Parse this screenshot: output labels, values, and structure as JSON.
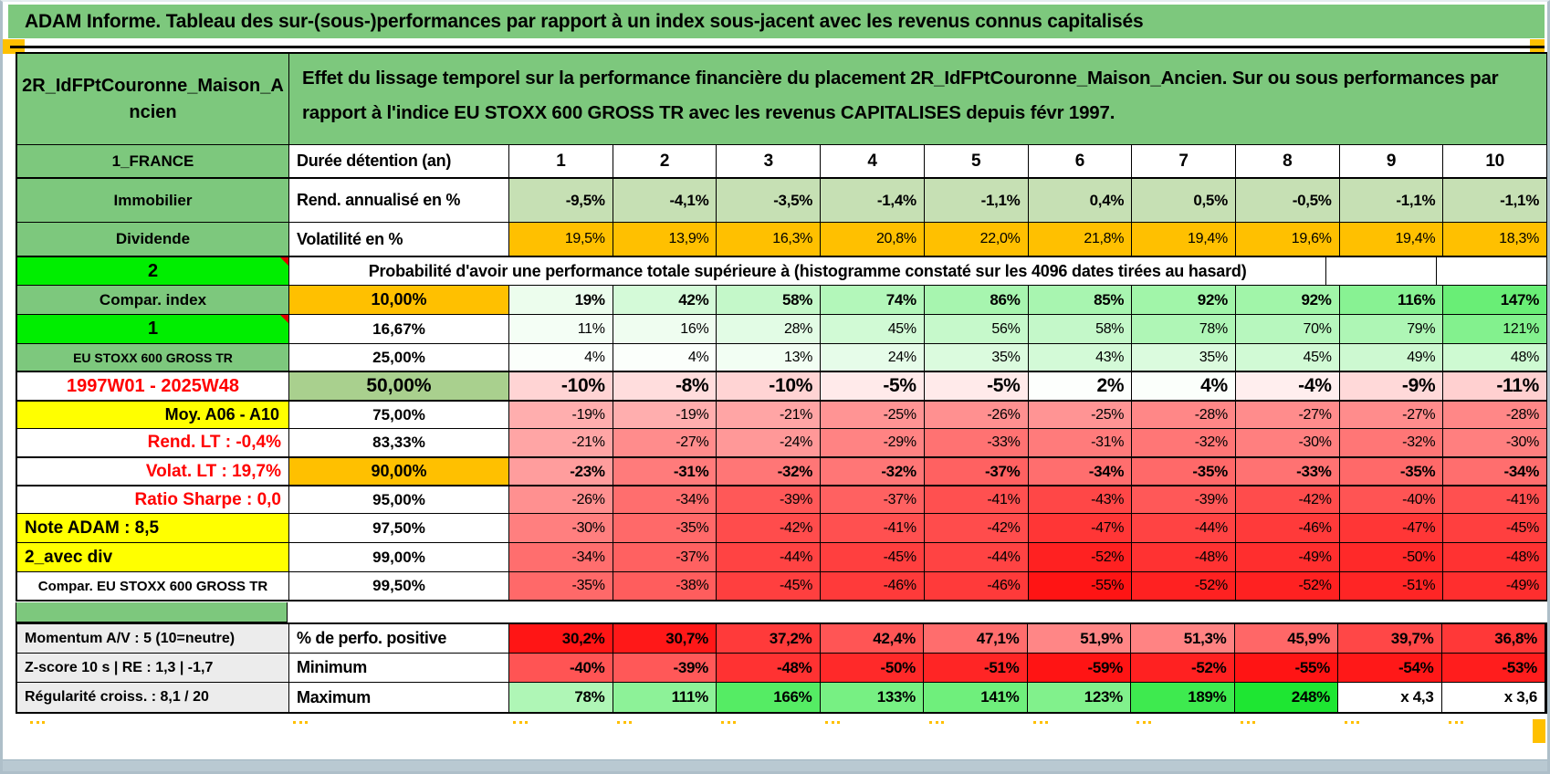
{
  "title": "ADAM Informe. Tableau des sur-(sous-)performances par rapport à un index sous-jacent avec les revenus connus capitalisés",
  "colors": {
    "band_green": "#7dc87d",
    "bright_green": "#00ee00",
    "orange": "#ffc000",
    "yellow": "#ffff00",
    "static_light_green": "#c6e0b4",
    "median_label_green": "#a9d08e",
    "red_text": "#ff0000",
    "gray_label_bg": "#ececec",
    "heat_negative_max": "#ff0000",
    "heat_positive_max": "#1ee632"
  },
  "header": {
    "asset": "2R_IdFPtCouronne_Maison_Ancien",
    "description": "Effet du lissage temporel sur la performance financière du placement 2R_IdFPtCouronne_Maison_Ancien. Sur ou sous performances par rapport à l'indice EU STOXX 600 GROSS TR avec les revenus CAPITALISES depuis févr 1997."
  },
  "table": {
    "rows": [
      {
        "left": "1_FRANCE",
        "left_style": "lGreen",
        "header": "Durée détention (an)",
        "header_style": "bLabel",
        "type": "colhead",
        "values": [
          "1",
          "2",
          "3",
          "4",
          "5",
          "6",
          "7",
          "8",
          "9",
          "10"
        ]
      },
      {
        "left": "Immobilier",
        "left_style": "lGreen",
        "header": "Rend. annualisé en %",
        "header_style": "bLabel",
        "type": "lightgreen",
        "bold": true,
        "values": [
          "-9,5%",
          "-4,1%",
          "-3,5%",
          "-1,4%",
          "-1,1%",
          "0,4%",
          "0,5%",
          "-0,5%",
          "-1,1%",
          "-1,1%"
        ]
      },
      {
        "left": "Dividende",
        "left_style": "lGreen",
        "header": "Volatilité en %",
        "header_style": "bLabel",
        "type": "orange",
        "values": [
          "19,5%",
          "13,9%",
          "16,3%",
          "20,8%",
          "22,0%",
          "21,8%",
          "19,4%",
          "19,6%",
          "19,4%",
          "18,3%"
        ]
      },
      {
        "left": "2",
        "left_style": "lBright",
        "left_comment": true,
        "type": "span",
        "span": "Probabilité d'avoir une performance totale supérieure à (histogramme constaté sur les 4096 dates tirées au hasard)"
      },
      {
        "left": "Compar. index",
        "left_style": "lGreen",
        "header": "10,00%",
        "header_style": "bOrange",
        "type": "heat",
        "bold": true,
        "values": [
          "19%",
          "42%",
          "58%",
          "74%",
          "86%",
          "85%",
          "92%",
          "92%",
          "116%",
          "147%"
        ]
      },
      {
        "left": "1",
        "left_style": "lBright",
        "left_comment": true,
        "header": "16,67%",
        "header_style": "bPct",
        "type": "heat",
        "values": [
          "11%",
          "16%",
          "28%",
          "45%",
          "56%",
          "58%",
          "78%",
          "70%",
          "79%",
          "121%"
        ]
      },
      {
        "left": "EU STOXX 600 GROSS TR",
        "left_style": "lGreenSm",
        "header": "25,00%",
        "header_style": "bPct",
        "type": "heat",
        "values": [
          "4%",
          "4%",
          "13%",
          "24%",
          "35%",
          "43%",
          "35%",
          "45%",
          "49%",
          "48%"
        ]
      },
      {
        "left": "1997W01 - 2025W48",
        "left_style": "lRedC",
        "header": "50,00%",
        "header_style": "bGreen",
        "type": "heat",
        "big": true,
        "values": [
          "-10%",
          "-8%",
          "-10%",
          "-5%",
          "-5%",
          "2%",
          "4%",
          "-4%",
          "-9%",
          "-11%"
        ]
      },
      {
        "left": "Moy. A06 - A10",
        "left_style": "lYellowR",
        "header": "75,00%",
        "header_style": "bPct",
        "type": "heat",
        "values": [
          "-19%",
          "-19%",
          "-21%",
          "-25%",
          "-26%",
          "-25%",
          "-28%",
          "-27%",
          "-27%",
          "-28%"
        ]
      },
      {
        "left": "Rend. LT :   -0,4%",
        "left_style": "lRedR",
        "header": "83,33%",
        "header_style": "bPct",
        "type": "heat",
        "values": [
          "-21%",
          "-27%",
          "-24%",
          "-29%",
          "-33%",
          "-31%",
          "-32%",
          "-30%",
          "-32%",
          "-30%"
        ]
      },
      {
        "left": "Volat. LT :   19,7%",
        "left_style": "lRedR",
        "header": "90,00%",
        "header_style": "bOrange",
        "type": "heat",
        "bold": true,
        "values": [
          "-23%",
          "-31%",
          "-32%",
          "-32%",
          "-37%",
          "-34%",
          "-35%",
          "-33%",
          "-35%",
          "-34%"
        ]
      },
      {
        "left": "Ratio Sharpe :   0,0",
        "left_style": "lRedR",
        "header": "95,00%",
        "header_style": "bPct",
        "type": "heat",
        "values": [
          "-26%",
          "-34%",
          "-39%",
          "-37%",
          "-41%",
          "-43%",
          "-39%",
          "-42%",
          "-40%",
          "-41%"
        ]
      },
      {
        "left": "Note ADAM : 8,5",
        "left_style": "lYellowL",
        "header": "97,50%",
        "header_style": "bPct",
        "type": "heat",
        "values": [
          "-30%",
          "-35%",
          "-42%",
          "-41%",
          "-42%",
          "-47%",
          "-44%",
          "-46%",
          "-47%",
          "-45%"
        ]
      },
      {
        "left": "2_avec div",
        "left_style": "lYellowL",
        "header": "99,00%",
        "header_style": "bPct",
        "type": "heat",
        "values": [
          "-34%",
          "-37%",
          "-44%",
          "-45%",
          "-44%",
          "-52%",
          "-48%",
          "-49%",
          "-50%",
          "-48%"
        ]
      },
      {
        "left": "Compar. EU STOXX 600 GROSS TR",
        "left_style": "lWhiteC",
        "header": "99,50%",
        "header_style": "bPct",
        "type": "heat",
        "values": [
          "-35%",
          "-38%",
          "-45%",
          "-46%",
          "-46%",
          "-55%",
          "-52%",
          "-52%",
          "-51%",
          "-49%"
        ]
      }
    ]
  },
  "bottom": {
    "rows": [
      {
        "left": "Momentum A/V : 5 (10=neutre)",
        "left_style": "lGray",
        "header": "% de perfo. positive",
        "header_style": "bLabel",
        "type": "heat",
        "scale": "perfo",
        "bold": true,
        "values": [
          "30,2%",
          "30,7%",
          "37,2%",
          "42,4%",
          "47,1%",
          "51,9%",
          "51,3%",
          "45,9%",
          "39,7%",
          "36,8%"
        ]
      },
      {
        "left": "Z-score 10 s | RE : 1,3 | -1,7",
        "left_style": "lGray",
        "header": "Minimum",
        "header_style": "bLabel",
        "type": "heat",
        "bold": true,
        "values": [
          "-40%",
          "-39%",
          "-48%",
          "-50%",
          "-51%",
          "-59%",
          "-52%",
          "-55%",
          "-54%",
          "-53%"
        ]
      },
      {
        "left": "Régularité croiss. : 8,1 / 20",
        "left_style": "lGray",
        "header": "Maximum",
        "header_style": "bLabel",
        "type": "heat",
        "bold": true,
        "values": [
          "78%",
          "111%",
          "166%",
          "133%",
          "141%",
          "123%",
          "189%",
          "248%",
          "x 4,3",
          "x 3,6"
        ]
      }
    ]
  }
}
